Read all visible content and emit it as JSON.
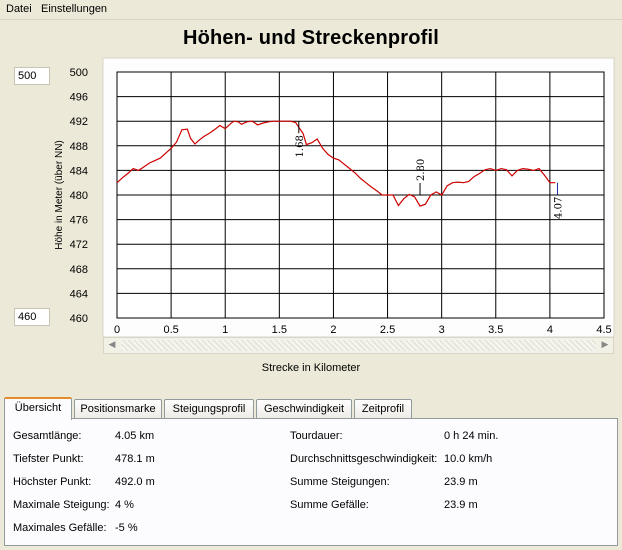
{
  "menu": {
    "file": "Datei",
    "settings": "Einstellungen"
  },
  "title": "Höhen- und Streckenprofil",
  "y_range": {
    "max": "500",
    "min": "460"
  },
  "chart_data": {
    "type": "line",
    "title": "",
    "xlabel": "Strecke in Kilometer",
    "ylabel": "Höhe in Meter (über NN)",
    "xlim": [
      0,
      4.5
    ],
    "ylim": [
      460,
      500
    ],
    "x_ticks": [
      "0",
      "0.5",
      "1",
      "1.5",
      "2",
      "2.5",
      "3",
      "3.5",
      "4",
      "4.5"
    ],
    "y_ticks": [
      "500",
      "496",
      "492",
      "488",
      "484",
      "480",
      "476",
      "472",
      "468",
      "464",
      "460"
    ],
    "grid": true,
    "line_color": "#cc0000",
    "series": [
      {
        "x": [
          0.0,
          0.05,
          0.1,
          0.15,
          0.2,
          0.25,
          0.3,
          0.35,
          0.4,
          0.45,
          0.5,
          0.55,
          0.6,
          0.65,
          0.68,
          0.72,
          0.75,
          0.8,
          0.85,
          0.9,
          0.95,
          1.0,
          1.05,
          1.08,
          1.12,
          1.15,
          1.2,
          1.25,
          1.3,
          1.35,
          1.4,
          1.45,
          1.5,
          1.55,
          1.6,
          1.65,
          1.68,
          1.72,
          1.75,
          1.8,
          1.85,
          1.9,
          1.95,
          2.0,
          2.05,
          2.1,
          2.15,
          2.2,
          2.25,
          2.3,
          2.35,
          2.4,
          2.45,
          2.5,
          2.55,
          2.6,
          2.65,
          2.7,
          2.75,
          2.8,
          2.85,
          2.9,
          2.95,
          3.0,
          3.05,
          3.1,
          3.15,
          3.2,
          3.25,
          3.3,
          3.35,
          3.4,
          3.45,
          3.5,
          3.55,
          3.6,
          3.65,
          3.7,
          3.75,
          3.8,
          3.85,
          3.9,
          3.95,
          4.0,
          4.05
        ],
        "y": [
          482.0,
          482.8,
          483.5,
          484.3,
          484.0,
          484.6,
          485.2,
          485.6,
          486.0,
          486.8,
          487.6,
          488.6,
          490.6,
          490.7,
          489.2,
          488.3,
          488.8,
          489.5,
          490.0,
          490.6,
          491.3,
          490.8,
          491.6,
          492.0,
          491.9,
          491.5,
          491.9,
          492.0,
          491.4,
          491.7,
          491.9,
          492.0,
          492.0,
          492.0,
          492.0,
          491.8,
          491.0,
          490.0,
          488.2,
          488.5,
          489.1,
          487.6,
          486.6,
          486.0,
          485.7,
          485.0,
          484.3,
          483.6,
          482.7,
          482.0,
          481.3,
          480.7,
          480.0,
          480.0,
          480.0,
          478.3,
          479.4,
          480.1,
          479.7,
          478.2,
          478.5,
          480.0,
          480.5,
          480.0,
          481.5,
          482.0,
          482.1,
          482.0,
          482.2,
          483.0,
          483.5,
          484.1,
          484.3,
          484.0,
          484.3,
          484.1,
          483.1,
          484.0,
          484.3,
          484.2,
          484.0,
          484.3,
          483.2,
          482.0,
          482.0
        ]
      }
    ],
    "annotations": [
      {
        "label": "1.68",
        "x": 1.68,
        "y": 492.0
      },
      {
        "label": "2.80",
        "x": 2.8,
        "y": 480.0
      },
      {
        "label": "4.07",
        "x": 4.07,
        "y": 482.0
      }
    ]
  },
  "tabs": [
    "Übersicht",
    "Positionsmarke",
    "Steigungsprofil",
    "Geschwindigkeit",
    "Zeitprofil"
  ],
  "overview": {
    "left": [
      {
        "label": "Gesamtlänge:",
        "value": "4.05 km"
      },
      {
        "label": "Tiefster Punkt:",
        "value": "478.1 m"
      },
      {
        "label": "Höchster Punkt:",
        "value": "492.0 m"
      },
      {
        "label": "Maximale Steigung:",
        "value": "4 %"
      },
      {
        "label": "Maximales Gefälle:",
        "value": "-5 %"
      }
    ],
    "right": [
      {
        "label": "Tourdauer:",
        "value": "0 h 24 min."
      },
      {
        "label": "Durchschnittsgeschwindigkeit:",
        "value": "10.0 km/h"
      },
      {
        "label": "Summe Steigungen:",
        "value": "23.9 m"
      },
      {
        "label": "Summe Gefälle:",
        "value": "23.9 m"
      }
    ]
  }
}
